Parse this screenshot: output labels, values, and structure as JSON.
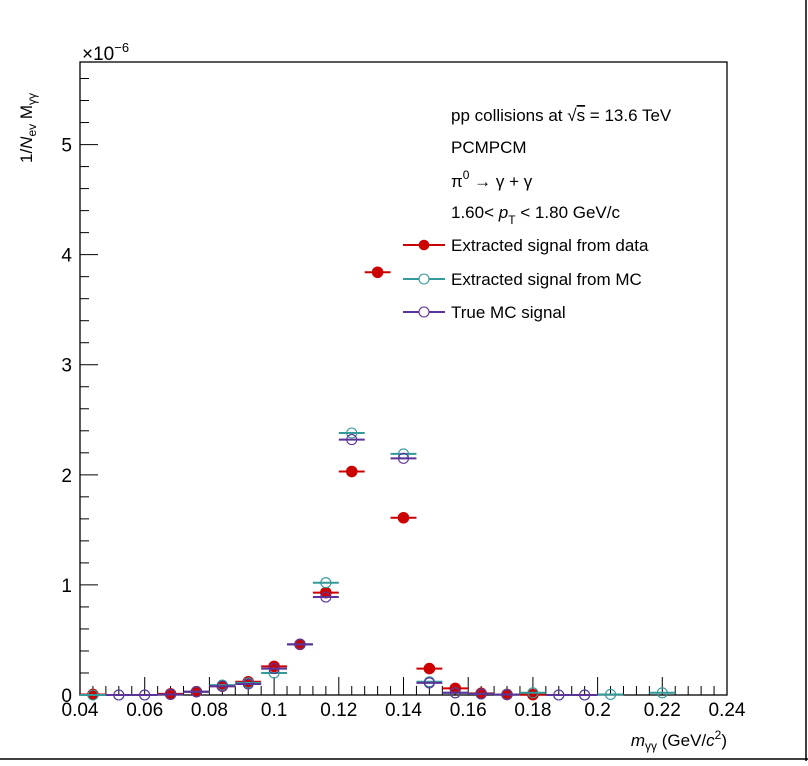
{
  "chart_data": {
    "type": "scatter",
    "title": "",
    "xlabel": {
      "symbol": "m",
      "sub": "γγ",
      "unit_prefix": " (GeV/",
      "unit_c": "c",
      "unit_sup": "2",
      "unit_suffix": ")"
    },
    "ylabel": {
      "prefix": "1/",
      "n": "N",
      "n_sub": "ev",
      "m": " M",
      "m_sub": "γγ"
    },
    "y_multiplier": {
      "base": "×10",
      "exp": "−6"
    },
    "xlim": [
      0.04,
      0.24
    ],
    "ylim": [
      0,
      5.75
    ],
    "x_ticks": [
      0.04,
      0.06,
      0.08,
      0.1,
      0.12,
      0.14,
      0.16,
      0.18,
      0.2,
      0.22,
      0.24
    ],
    "x_tick_labels": [
      "0.04",
      "0.06",
      "0.08",
      "0.1",
      "0.12",
      "0.14",
      "0.16",
      "0.18",
      "0.2",
      "0.22",
      "0.24"
    ],
    "y_ticks": [
      0,
      1,
      2,
      3,
      4,
      5
    ],
    "y_tick_labels": [
      "0",
      "1",
      "2",
      "3",
      "4",
      "5"
    ],
    "grid": false,
    "legend_position": "top-right",
    "annotations": [
      {
        "kind": "sqrt",
        "text_before": "pp collisions at ",
        "sqrt_arg": "s",
        "text_after": " = 13.6 TeV"
      },
      {
        "kind": "plain",
        "text": "PCMPCM"
      },
      {
        "kind": "decay",
        "pi": "π",
        "pi_sup": "0",
        "rest": " → γ + γ"
      },
      {
        "kind": "pt",
        "before": "1.60< ",
        "p": "p",
        "p_sub": "T",
        "after": " < 1.80 GeV/c"
      }
    ],
    "bin_half_width": 0.004,
    "series": [
      {
        "name": "Extracted signal from data",
        "color": "#cc0000",
        "marker": "filled-circle",
        "points": [
          {
            "x": 0.044,
            "y": 0.005
          },
          {
            "x": 0.068,
            "y": 0.01
          },
          {
            "x": 0.076,
            "y": 0.03
          },
          {
            "x": 0.084,
            "y": 0.08
          },
          {
            "x": 0.092,
            "y": 0.12
          },
          {
            "x": 0.1,
            "y": 0.26
          },
          {
            "x": 0.108,
            "y": 0.46
          },
          {
            "x": 0.116,
            "y": 0.93
          },
          {
            "x": 0.124,
            "y": 2.03
          },
          {
            "x": 0.132,
            "y": 3.84
          },
          {
            "x": 0.14,
            "y": 1.61
          },
          {
            "x": 0.148,
            "y": 0.24
          },
          {
            "x": 0.156,
            "y": 0.06
          },
          {
            "x": 0.164,
            "y": 0.015
          },
          {
            "x": 0.172,
            "y": 0.005
          },
          {
            "x": 0.18,
            "y": 0.003
          }
        ]
      },
      {
        "name": "Extracted signal from MC",
        "color": "#339999",
        "marker": "open-circle",
        "points": [
          {
            "x": 0.044,
            "y": 0.0
          },
          {
            "x": 0.052,
            "y": 0.0
          },
          {
            "x": 0.06,
            "y": 0.0
          },
          {
            "x": 0.068,
            "y": 0.005
          },
          {
            "x": 0.076,
            "y": 0.03
          },
          {
            "x": 0.084,
            "y": 0.09
          },
          {
            "x": 0.092,
            "y": 0.11
          },
          {
            "x": 0.1,
            "y": 0.2
          },
          {
            "x": 0.108,
            "y": 0.46
          },
          {
            "x": 0.116,
            "y": 1.02
          },
          {
            "x": 0.124,
            "y": 2.38
          },
          {
            "x": 0.14,
            "y": 2.19
          },
          {
            "x": 0.148,
            "y": 0.12
          },
          {
            "x": 0.156,
            "y": 0.02
          },
          {
            "x": 0.164,
            "y": 0.01
          },
          {
            "x": 0.172,
            "y": 0.005
          },
          {
            "x": 0.18,
            "y": 0.02
          },
          {
            "x": 0.188,
            "y": 0.0
          },
          {
            "x": 0.196,
            "y": 0.0
          },
          {
            "x": 0.204,
            "y": 0.005
          },
          {
            "x": 0.22,
            "y": 0.02
          }
        ]
      },
      {
        "name": "True MC signal",
        "color": "#5c3399",
        "marker": "open-circle",
        "points": [
          {
            "x": 0.052,
            "y": 0.0
          },
          {
            "x": 0.06,
            "y": 0.0
          },
          {
            "x": 0.068,
            "y": 0.005
          },
          {
            "x": 0.076,
            "y": 0.03
          },
          {
            "x": 0.084,
            "y": 0.08
          },
          {
            "x": 0.092,
            "y": 0.1
          },
          {
            "x": 0.1,
            "y": 0.24
          },
          {
            "x": 0.108,
            "y": 0.46
          },
          {
            "x": 0.116,
            "y": 0.89
          },
          {
            "x": 0.124,
            "y": 2.32
          },
          {
            "x": 0.14,
            "y": 2.15
          },
          {
            "x": 0.148,
            "y": 0.11
          },
          {
            "x": 0.156,
            "y": 0.02
          },
          {
            "x": 0.164,
            "y": 0.01
          },
          {
            "x": 0.172,
            "y": 0.003
          },
          {
            "x": 0.188,
            "y": 0.0
          },
          {
            "x": 0.196,
            "y": 0.0
          }
        ]
      }
    ]
  }
}
